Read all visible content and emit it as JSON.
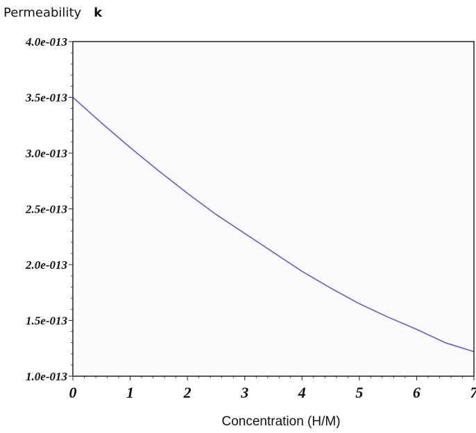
{
  "chart_data": {
    "type": "line",
    "title": "",
    "ylabel": "Permeability",
    "ylabel_symbol": "k",
    "xlabel": "Concentration (H/M)",
    "xlim": [
      0,
      7
    ],
    "ylim": [
      1e-13,
      4e-13
    ],
    "x_ticks": [
      0,
      1,
      2,
      3,
      4,
      5,
      6,
      7
    ],
    "x_tick_labels": [
      "0",
      "1",
      "2",
      "3",
      "4",
      "5",
      "6",
      "7"
    ],
    "y_ticks": [
      1e-13,
      1.5e-13,
      2e-13,
      2.5e-13,
      3e-13,
      3.5e-13,
      4e-13
    ],
    "y_tick_labels": [
      "1.0e-013",
      "1.5e-013",
      "2.0e-013",
      "2.5e-013",
      "3.0e-013",
      "3.5e-013",
      "4.0e-013"
    ],
    "grid": false,
    "colors": {
      "line": "#5b5bf0",
      "plot_background": "#fdfbfd",
      "frame": "#222222"
    },
    "series": [
      {
        "x": [
          0,
          0.5,
          1,
          1.5,
          2,
          2.5,
          3,
          3.5,
          4,
          4.5,
          5,
          5.5,
          6,
          6.5,
          7
        ],
        "y": [
          3.5e-13,
          3.27e-13,
          3.05e-13,
          2.84e-13,
          2.64e-13,
          2.45e-13,
          2.28e-13,
          2.11e-13,
          1.94e-13,
          1.79e-13,
          1.65e-13,
          1.53e-13,
          1.42e-13,
          1.3e-13,
          1.22e-13
        ]
      }
    ]
  }
}
